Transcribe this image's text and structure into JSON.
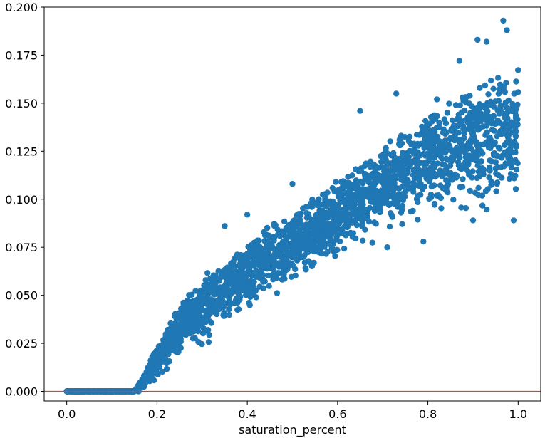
{
  "chart_data": {
    "type": "scatter",
    "title": "",
    "xlabel": "saturation_percent",
    "ylabel": "",
    "xlim": [
      -0.05,
      1.05
    ],
    "ylim": [
      -0.005,
      0.2
    ],
    "x_ticks": [
      "0.0",
      "0.2",
      "0.4",
      "0.6",
      "0.8",
      "1.0"
    ],
    "y_ticks": [
      "0.000",
      "0.025",
      "0.050",
      "0.075",
      "0.100",
      "0.125",
      "0.150",
      "0.175",
      "0.200"
    ],
    "grid": false,
    "legend": "none",
    "reference_lines": [
      {
        "axis": "y",
        "value": 0.0,
        "color": "#e8392b"
      }
    ],
    "marker_color": "#1f77b4",
    "series": [
      {
        "points_description": "dense point cloud",
        "envelope": {
          "x": [
            0.0,
            0.15,
            0.17,
            0.2,
            0.25,
            0.3,
            0.35,
            0.4,
            0.5,
            0.6,
            0.7,
            0.8,
            0.9,
            1.0
          ],
          "lower": [
            0.0,
            0.0,
            0.0,
            0.005,
            0.015,
            0.022,
            0.03,
            0.04,
            0.052,
            0.066,
            0.076,
            0.086,
            0.09,
            0.094
          ],
          "upper": [
            0.0,
            0.0,
            0.008,
            0.025,
            0.045,
            0.06,
            0.068,
            0.08,
            0.094,
            0.11,
            0.128,
            0.145,
            0.158,
            0.172
          ]
        },
        "outliers": [
          {
            "x": 0.967,
            "y": 0.193
          },
          {
            "x": 0.975,
            "y": 0.188
          },
          {
            "x": 0.91,
            "y": 0.183
          },
          {
            "x": 0.93,
            "y": 0.182
          },
          {
            "x": 0.87,
            "y": 0.172
          },
          {
            "x": 0.82,
            "y": 0.152
          },
          {
            "x": 0.73,
            "y": 0.155
          },
          {
            "x": 0.65,
            "y": 0.146
          },
          {
            "x": 0.5,
            "y": 0.108
          },
          {
            "x": 0.4,
            "y": 0.092
          },
          {
            "x": 0.35,
            "y": 0.086
          },
          {
            "x": 0.71,
            "y": 0.075
          },
          {
            "x": 0.79,
            "y": 0.078
          },
          {
            "x": 0.99,
            "y": 0.089
          },
          {
            "x": 0.9,
            "y": 0.089
          }
        ]
      }
    ]
  }
}
